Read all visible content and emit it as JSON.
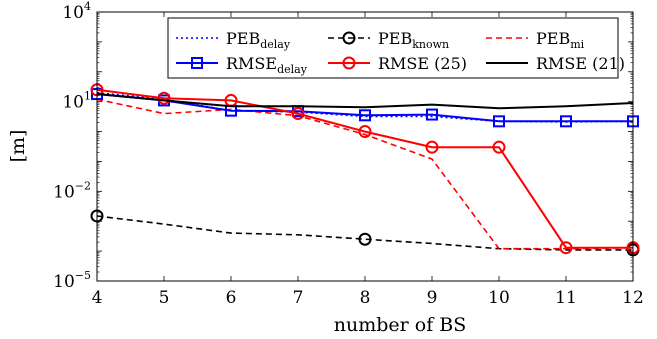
{
  "chart_data": {
    "type": "line",
    "xlabel": "number of BS",
    "ylabel": "[m]",
    "xlim": [
      4,
      12
    ],
    "ylim_exponent": [
      -5,
      4
    ],
    "y_scale": "log",
    "x_ticks": [
      "4",
      "5",
      "6",
      "7",
      "8",
      "9",
      "10",
      "11",
      "12"
    ],
    "y_ticks": [
      {
        "base": "10",
        "exp": "−5",
        "value": -5
      },
      {
        "base": "10",
        "exp": "−2",
        "value": -2
      },
      {
        "base": "10",
        "exp": "1",
        "value": 1
      },
      {
        "base": "10",
        "exp": "4",
        "value": 4
      }
    ],
    "x": [
      4,
      5,
      6,
      7,
      8,
      9,
      10,
      11,
      12
    ],
    "legend_placement": "top-right",
    "series": [
      {
        "key": "peb_delay",
        "name": "PEB",
        "sub": "delay",
        "color": "#0000ff",
        "style": "dotted",
        "marker": "none",
        "values": [
          20,
          12,
          5.0,
          4.5,
          3.2,
          3.2,
          2.2,
          2.1,
          2.2
        ]
      },
      {
        "key": "peb_known",
        "name": "PEB",
        "sub": "known",
        "color": "#000000",
        "style": "dashed",
        "marker": "circle",
        "values": [
          0.0015,
          0.0008,
          0.0004,
          0.00035,
          0.00025,
          0.00018,
          0.00012,
          0.00011,
          0.00011
        ],
        "marker_at": [
          4,
          8,
          12
        ]
      },
      {
        "key": "peb_mi",
        "name": "PEB",
        "sub": "mi",
        "color": "#ff0000",
        "style": "dashed",
        "marker": "none",
        "values": [
          12,
          4.0,
          5.5,
          3.4,
          0.8,
          0.12,
          0.00012,
          0.00012,
          0.00013
        ]
      },
      {
        "key": "rmse_delay",
        "name": "RMSE",
        "sub": "delay",
        "color": "#0000ff",
        "style": "solid",
        "marker": "square",
        "values": [
          18,
          11,
          5.0,
          4.8,
          3.5,
          3.7,
          2.2,
          2.2,
          2.2
        ]
      },
      {
        "key": "rmse_25",
        "name": "RMSE (25)",
        "sub": "",
        "color": "#ff0000",
        "style": "solid",
        "marker": "circle",
        "values": [
          25,
          13,
          11,
          4.0,
          1.0,
          0.3,
          0.3,
          0.00013,
          0.00013
        ]
      },
      {
        "key": "rmse_21",
        "name": "RMSE (21)",
        "sub": "",
        "color": "#000000",
        "style": "solid",
        "marker": "none",
        "values": [
          18,
          11,
          7,
          7,
          6.5,
          8,
          6,
          7,
          9
        ]
      }
    ]
  }
}
